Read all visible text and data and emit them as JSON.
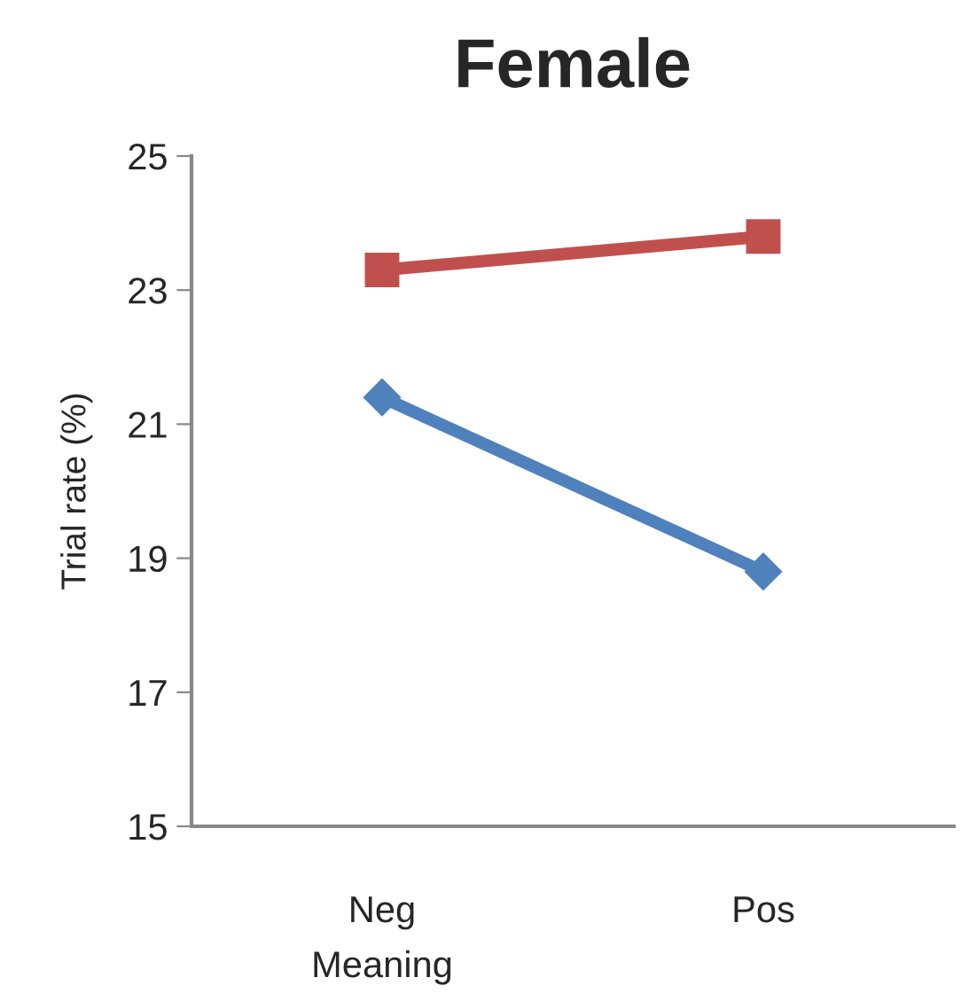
{
  "chart_data": {
    "type": "line",
    "title": "Female",
    "xlabel": "Meaning",
    "ylabel": "Trial rate (%)",
    "categories": [
      "Neg",
      "Pos"
    ],
    "series": [
      {
        "color": "#c0504d",
        "values": [
          23.3,
          23.8
        ],
        "marker": "square"
      },
      {
        "color": "#4f81bd",
        "values": [
          21.4,
          18.8
        ],
        "marker": "diamond"
      }
    ],
    "ylim": [
      15,
      25
    ],
    "yticks": [
      15,
      17,
      19,
      21,
      23,
      25
    ],
    "grid": false,
    "legend": false
  }
}
